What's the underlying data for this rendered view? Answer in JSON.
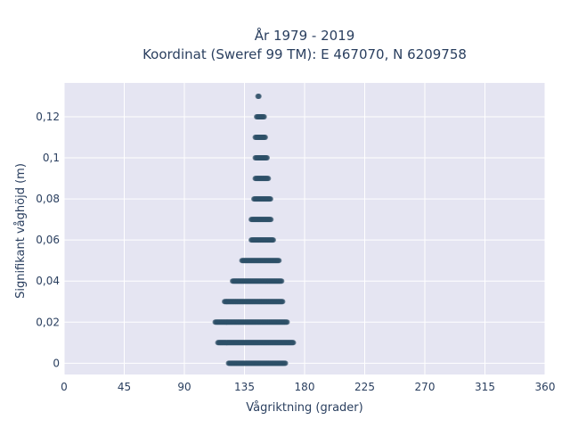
{
  "chart_data": {
    "type": "scatter",
    "title_line1": "År 1979 - 2019",
    "title_line2": "Koordinat (Sweref 99 TM): E 467070, N 6209758",
    "xlabel": "Vågriktning (grader)",
    "ylabel": "Signifikant våghöjd (m)",
    "xlim": [
      0,
      360
    ],
    "ylim": [
      -0.0055,
      0.1365
    ],
    "x_ticks": [
      0,
      45,
      90,
      135,
      180,
      225,
      270,
      315,
      360
    ],
    "x_tick_labels": [
      "0",
      "45",
      "90",
      "135",
      "180",
      "225",
      "270",
      "315",
      "360"
    ],
    "y_ticks": [
      0,
      0.02,
      0.04,
      0.06,
      0.08,
      0.1,
      0.12
    ],
    "y_tick_labels": [
      "0",
      "0,02",
      "0,04",
      "0,06",
      "0,08",
      "0,1",
      "0,12"
    ],
    "grid": true,
    "background": "#e5e5f2",
    "marker_color": "#2e5068",
    "series": [
      {
        "points_by_height": [
          {
            "y": 0,
            "x_min": 123,
            "x_max": 166
          },
          {
            "y": 0.01,
            "x_min": 115,
            "x_max": 172
          },
          {
            "y": 0.02,
            "x_min": 113,
            "x_max": 167
          },
          {
            "y": 0.03,
            "x_min": 120,
            "x_max": 164
          },
          {
            "y": 0.04,
            "x_min": 126,
            "x_max": 163
          },
          {
            "y": 0.05,
            "x_min": 133,
            "x_max": 161
          },
          {
            "y": 0.06,
            "x_min": 140,
            "x_max": 157
          },
          {
            "y": 0.07,
            "x_min": 140,
            "x_max": 155
          },
          {
            "y": 0.08,
            "x_min": 142,
            "x_max": 155
          },
          {
            "y": 0.09,
            "x_min": 143,
            "x_max": 153
          },
          {
            "y": 0.1,
            "x_min": 143,
            "x_max": 152
          },
          {
            "y": 0.11,
            "x_min": 143,
            "x_max": 151
          },
          {
            "y": 0.12,
            "x_min": 144,
            "x_max": 150
          },
          {
            "y": 0.13,
            "x_min": 145,
            "x_max": 146
          }
        ]
      }
    ]
  }
}
